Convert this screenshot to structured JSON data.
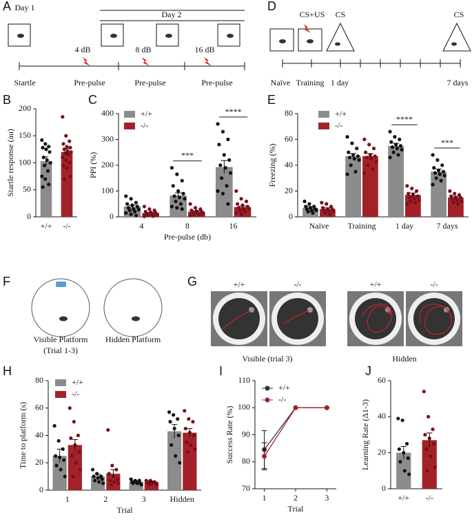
{
  "panels": {
    "A": {
      "letter": "A",
      "day1": "Day 1",
      "day2": "Day 2",
      "db4": "4 dB",
      "db8": "8 dB",
      "db16": "16 dB",
      "startle": "Startle",
      "prepulse1": "Pre-pulse",
      "prepulse2": "Pre-pulse",
      "prepulse3": "Pre-pulse"
    },
    "D": {
      "letter": "D",
      "csus": "CS+US",
      "cs1": "CS",
      "cs2": "CS",
      "naive": "Naïve",
      "training": "Training",
      "day1": "1 day",
      "day7": "7 days"
    },
    "F": {
      "letter": "F",
      "visible1": "Visible Platform",
      "visible2": "(Trial 1-3)",
      "hidden": "Hidden Platform"
    },
    "G": {
      "letter": "G",
      "wt1": "+/+",
      "ko1": "-/-",
      "wt2": "+/+",
      "ko2": "-/-",
      "visible": "Visible (trial 3)",
      "hidden": "Hidden"
    }
  },
  "chart_data": [
    {
      "type": "bar",
      "panel": "B",
      "ylabel": "Startle response (au)",
      "categories": [
        "+/+",
        "-/-"
      ],
      "values": [
        103,
        120
      ],
      "errors": [
        8,
        7
      ],
      "colors": [
        "#8c8c8c",
        "#a3222a"
      ],
      "point_colors": [
        "#111111",
        "#7a1018"
      ],
      "points": [
        [
          142,
          135,
          130,
          128,
          125,
          120,
          110,
          105,
          100,
          95,
          85,
          75,
          70,
          60,
          55
        ],
        [
          185,
          150,
          140,
          135,
          130,
          128,
          125,
          122,
          120,
          118,
          115,
          110,
          105,
          100,
          95,
          90,
          75,
          70
        ]
      ],
      "ylim": [
        0,
        200
      ],
      "yticks": [
        0,
        50,
        100,
        150,
        200
      ]
    },
    {
      "type": "bar",
      "panel": "C",
      "ylabel": "PPI (%)",
      "xlabel": "Pre-pulse (db)",
      "categories": [
        "4",
        "8",
        "16"
      ],
      "series": [
        {
          "name": "+/+",
          "color": "#8c8c8c",
          "point_color": "#111111",
          "values": [
            40,
            83,
            193
          ],
          "errors": [
            5,
            10,
            25
          ],
          "points": [
            [
              80,
              70,
              55,
              50,
              45,
              40,
              35,
              30,
              28,
              25,
              20,
              15,
              10,
              5
            ],
            [
              190,
              165,
              140,
              120,
              100,
              90,
              80,
              75,
              70,
              60,
              50,
              40,
              35,
              30
            ],
            [
              360,
              330,
              300,
              280,
              240,
              220,
              200,
              190,
              170,
              150,
              120,
              100,
              90,
              50
            ]
          ]
        },
        {
          "name": "-/-",
          "color": "#a3222a",
          "point_color": "#7a1018",
          "values": [
            15,
            20,
            38
          ],
          "errors": [
            2,
            3,
            4
          ],
          "points": [
            [
              40,
              30,
              25,
              20,
              18,
              15,
              12,
              10,
              8,
              5,
              3,
              2
            ],
            [
              50,
              35,
              30,
              25,
              22,
              20,
              18,
              15,
              12,
              10,
              8,
              5
            ],
            [
              100,
              70,
              60,
              50,
              45,
              40,
              35,
              30,
              28,
              25,
              20,
              15,
              10
            ]
          ]
        }
      ],
      "annotations": [
        {
          "category": "8",
          "text": "***"
        },
        {
          "category": "16",
          "text": "****"
        }
      ],
      "ylim": [
        0,
        400
      ],
      "yticks": [
        0,
        100,
        200,
        300,
        400
      ]
    },
    {
      "type": "bar",
      "panel": "E",
      "ylabel": "Freezing (%)",
      "categories": [
        "Naïve",
        "Training",
        "1 day",
        "7 days"
      ],
      "series": [
        {
          "name": "+/+",
          "color": "#8c8c8c",
          "point_color": "#111111",
          "values": [
            7,
            47,
            55,
            35
          ],
          "errors": [
            1,
            2,
            2,
            2
          ],
          "points": [
            [
              12,
              10,
              8,
              8,
              7,
              6,
              6,
              5,
              5,
              4,
              3
            ],
            [
              62,
              57,
              53,
              50,
              48,
              47,
              46,
              45,
              44,
              40,
              35,
              33
            ],
            [
              66,
              62,
              60,
              58,
              56,
              55,
              54,
              53,
              52,
              50,
              48,
              46
            ],
            [
              48,
              44,
              40,
              38,
              36,
              35,
              34,
              33,
              32,
              30,
              28,
              25
            ]
          ]
        },
        {
          "name": "-/-",
          "color": "#a3222a",
          "point_color": "#7a1018",
          "values": [
            6,
            47,
            17,
            15
          ],
          "errors": [
            1,
            2,
            1.5,
            1
          ],
          "points": [
            [
              11,
              10,
              8,
              7,
              6,
              6,
              5,
              5,
              4,
              3,
              2
            ],
            [
              60,
              56,
              53,
              50,
              48,
              47,
              46,
              45,
              43,
              40,
              37,
              34
            ],
            [
              24,
              22,
              20,
              18,
              17,
              16,
              15,
              14,
              13,
              12,
              11,
              10
            ],
            [
              20,
              18,
              17,
              16,
              15,
              15,
              14,
              13,
              12,
              11,
              10
            ]
          ]
        }
      ],
      "annotations": [
        {
          "category": "1 day",
          "text": "****"
        },
        {
          "category": "7 days",
          "text": "***"
        }
      ],
      "ylim": [
        0,
        80
      ],
      "yticks": [
        0,
        20,
        40,
        60,
        80
      ]
    },
    {
      "type": "bar",
      "panel": "H",
      "ylabel": "Time to platform (s)",
      "xlabel": "Trial",
      "categories": [
        "1",
        "2",
        "3",
        "Hidden"
      ],
      "series": [
        {
          "name": "+/+",
          "color": "#8c8c8c",
          "point_color": "#111111",
          "values": [
            25,
            10,
            6,
            43
          ],
          "errors": [
            5,
            1.5,
            0.5,
            5
          ],
          "points": [
            [
              47,
              36,
              30,
              25,
              24,
              22,
              18,
              15,
              10
            ],
            [
              15,
              12,
              10,
              10,
              9,
              8,
              7,
              6,
              5
            ],
            [
              8,
              7,
              7,
              6,
              6,
              5,
              5,
              5,
              4
            ],
            [
              57,
              55,
              52,
              50,
              45,
              40,
              33,
              25,
              20
            ]
          ]
        },
        {
          "name": "-/-",
          "color": "#a3222a",
          "point_color": "#7a1018",
          "values": [
            33,
            12,
            6,
            42
          ],
          "errors": [
            4,
            3,
            0.5,
            3
          ],
          "points": [
            [
              60,
              50,
              40,
              38,
              33,
              28,
              25,
              20,
              15,
              10
            ],
            [
              44,
              18,
              15,
              12,
              10,
              8,
              7,
              6,
              5,
              4
            ],
            [
              7,
              7,
              6,
              6,
              6,
              5,
              5,
              5,
              4,
              4
            ],
            [
              58,
              52,
              50,
              45,
              42,
              40,
              35,
              33,
              30,
              28
            ]
          ]
        }
      ],
      "ylim": [
        0,
        80
      ],
      "yticks": [
        0,
        20,
        40,
        60,
        80
      ]
    },
    {
      "type": "line",
      "panel": "I",
      "ylabel": "Success Rate (%)",
      "xlabel": "Trial",
      "x": [
        1,
        2,
        3
      ],
      "series": [
        {
          "name": "+/+",
          "color": "#333333",
          "values": [
            84.5,
            100,
            100
          ],
          "errors": [
            7,
            null,
            null
          ]
        },
        {
          "name": "-/-",
          "color": "#a3222a",
          "values": [
            82,
            100,
            100
          ],
          "errors": [
            5,
            null,
            null
          ]
        }
      ],
      "xlim": [
        0.7,
        3.3
      ],
      "xticks": [
        1,
        2,
        3
      ],
      "ylim": [
        70,
        110
      ],
      "yticks": [
        70,
        80,
        90,
        100,
        110
      ]
    },
    {
      "type": "bar",
      "panel": "J",
      "ylabel": "Learning Rate (Δ1-3)",
      "categories": [
        "+/+",
        "-/-"
      ],
      "values": [
        20,
        27
      ],
      "errors": [
        3.5,
        4
      ],
      "colors": [
        "#8c8c8c",
        "#a3222a"
      ],
      "point_colors": [
        "#111111",
        "#7a1018"
      ],
      "points": [
        [
          39,
          38,
          25,
          22,
          20,
          17,
          15,
          10,
          8
        ],
        [
          54,
          40,
          33,
          30,
          28,
          25,
          22,
          18,
          12,
          10
        ]
      ],
      "ylim": [
        0,
        60
      ],
      "yticks": [
        0,
        20,
        40,
        60
      ]
    }
  ]
}
